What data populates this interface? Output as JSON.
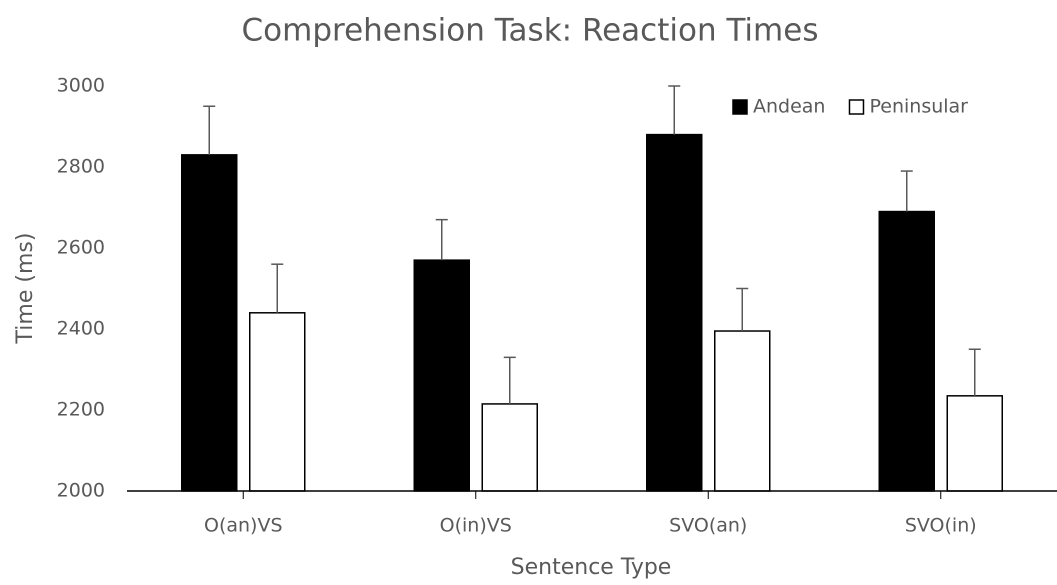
{
  "chart_data": {
    "type": "bar",
    "title": "Comprehension Task: Reaction Times",
    "x_label": "Sentence Type",
    "y_label": "Time (ms)",
    "categories": [
      "O(an)VS",
      "O(in)VS",
      "SVO(an)",
      "SVO(in)"
    ],
    "series": [
      {
        "name": "Andean",
        "color": "#000000",
        "values": [
          2830,
          2570,
          2880,
          2690
        ],
        "errors": [
          120,
          100,
          120,
          100
        ]
      },
      {
        "name": "Peninsular",
        "color": "#ffffff",
        "values": [
          2440,
          2215,
          2395,
          2235
        ],
        "errors": [
          120,
          115,
          105,
          115
        ]
      }
    ],
    "ylim": [
      2000,
      3000
    ],
    "yticks": [
      2000,
      2200,
      2400,
      2600,
      2800,
      3000
    ],
    "grid": false,
    "legend": "upper right"
  }
}
